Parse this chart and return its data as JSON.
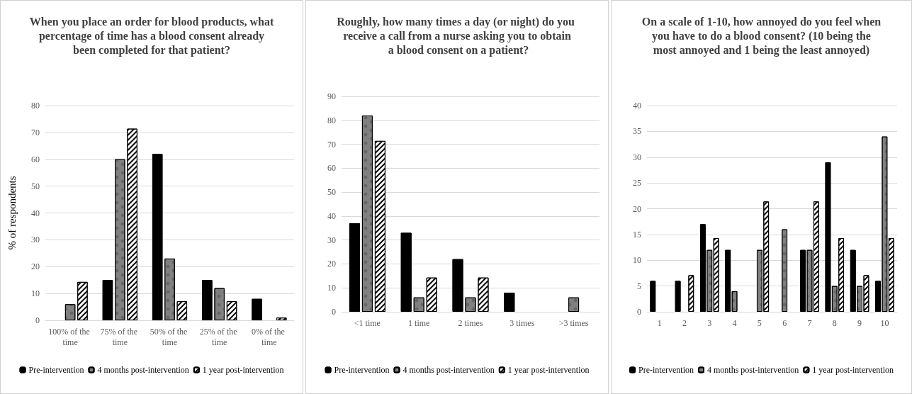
{
  "chart_data": [
    {
      "type": "bar",
      "title": "When you place an order for blood products, what percentage of time has a blood consent already been completed for that patient?",
      "ylabel": "% of respondents",
      "categories": [
        "100% of the time",
        "75% of the time",
        "50% of the time",
        "25% of the time",
        "0% of the time"
      ],
      "series": [
        {
          "name": "Pre-intervention",
          "color": "#000000",
          "values": [
            null,
            15,
            62,
            15,
            8
          ]
        },
        {
          "name": "4 months post-intervention",
          "color": "#808080",
          "values": [
            6,
            60,
            23,
            12,
            null
          ]
        },
        {
          "name": "1 year post-intervention",
          "color": "#ffffff",
          "values": [
            14.3,
            71.4,
            7.1,
            7.1,
            1
          ]
        }
      ],
      "ylim": [
        0,
        80
      ],
      "yticks": [
        0,
        10,
        20,
        30,
        40,
        50,
        60,
        70,
        80
      ],
      "grid": "y",
      "legend": "bottom"
    },
    {
      "type": "bar",
      "title": "Roughly, how many times a day (or night) do you receive a call from a nurse asking you to obtain a blood consent on a patient?",
      "categories": [
        "<1 time",
        "1 time",
        "2 times",
        "3 times",
        ">3 times"
      ],
      "series": [
        {
          "name": "Pre-intervention",
          "color": "#000000",
          "values": [
            37,
            33,
            22,
            8,
            null
          ]
        },
        {
          "name": "4 months post-intervention",
          "color": "#808080",
          "values": [
            82,
            6,
            6,
            null,
            6
          ]
        },
        {
          "name": "1 year post-intervention",
          "color": "#ffffff",
          "values": [
            71.4,
            14.3,
            14.3,
            null,
            null
          ]
        }
      ],
      "ylim": [
        0,
        90
      ],
      "yticks": [
        0,
        10,
        20,
        30,
        40,
        50,
        60,
        70,
        80,
        90
      ],
      "grid": "y",
      "legend": "bottom"
    },
    {
      "type": "bar",
      "title": "On a scale of 1-10, how annoyed do you feel when you have to do a blood consent? (10 being the most annoyed and 1 being the least annoyed)",
      "categories": [
        "1",
        "2",
        "3",
        "4",
        "5",
        "6",
        "7",
        "8",
        "9",
        "10"
      ],
      "series": [
        {
          "name": "Pre-intervention",
          "color": "#000000",
          "values": [
            6,
            6,
            17,
            12,
            null,
            null,
            12,
            29,
            12,
            6
          ]
        },
        {
          "name": "4 months post-intervention",
          "color": "#808080",
          "values": [
            null,
            null,
            12,
            4,
            12,
            16,
            12,
            5,
            5,
            34
          ]
        },
        {
          "name": "1 year post-intervention",
          "color": "#ffffff",
          "values": [
            null,
            7.1,
            14.3,
            null,
            21.4,
            null,
            21.4,
            14.3,
            7.1,
            14.3
          ]
        }
      ],
      "ylim": [
        0,
        40
      ],
      "yticks": [
        0,
        5,
        10,
        15,
        20,
        25,
        30,
        35,
        40
      ],
      "grid": "y",
      "legend": "bottom"
    }
  ]
}
